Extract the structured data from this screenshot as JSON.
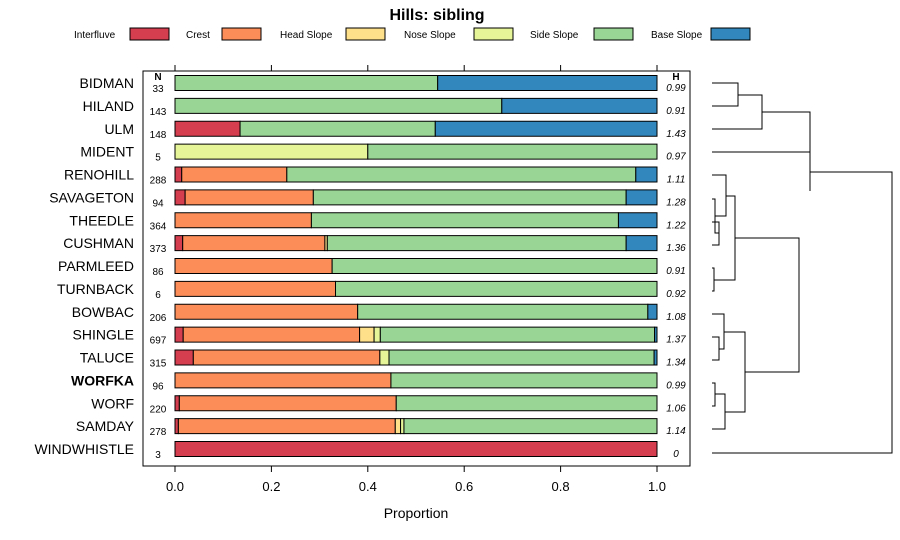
{
  "chart_data": {
    "type": "stacked-bar",
    "title": "Hills: sibling",
    "xlabel": "Proportion",
    "xlim": [
      0,
      1
    ],
    "xticks": [
      "0.0",
      "0.2",
      "0.4",
      "0.6",
      "0.8",
      "1.0"
    ],
    "n_header": "N",
    "h_header": "H",
    "legend": [
      {
        "name": "Interfluve",
        "color": "#D53E4F"
      },
      {
        "name": "Crest",
        "color": "#FC8D59"
      },
      {
        "name": "Head Slope",
        "color": "#FEE08B"
      },
      {
        "name": "Nose Slope",
        "color": "#E6F598"
      },
      {
        "name": "Side Slope",
        "color": "#99D594"
      },
      {
        "name": "Base Slope",
        "color": "#3288BD"
      }
    ],
    "rows": [
      {
        "name": "BIDMAN",
        "n": "33",
        "h": "0.99",
        "bold": false,
        "values": [
          0,
          0,
          0,
          0,
          0.545,
          0.455
        ]
      },
      {
        "name": "HILAND",
        "n": "143",
        "h": "0.91",
        "bold": false,
        "values": [
          0,
          0,
          0,
          0,
          0.678,
          0.322
        ]
      },
      {
        "name": "ULM",
        "n": "148",
        "h": "1.43",
        "bold": false,
        "values": [
          0.135,
          0,
          0,
          0,
          0.405,
          0.46
        ]
      },
      {
        "name": "MIDENT",
        "n": "5",
        "h": "0.97",
        "bold": false,
        "values": [
          0,
          0,
          0,
          0.4,
          0.6,
          0
        ]
      },
      {
        "name": "RENOHILL",
        "n": "288",
        "h": "1.11",
        "bold": false,
        "values": [
          0.014,
          0.218,
          0,
          0,
          0.724,
          0.044
        ]
      },
      {
        "name": "SAVAGETON",
        "n": "94",
        "h": "1.28",
        "bold": false,
        "values": [
          0.021,
          0.266,
          0,
          0,
          0.649,
          0.064
        ]
      },
      {
        "name": "THEEDLE",
        "n": "364",
        "h": "1.22",
        "bold": false,
        "values": [
          0,
          0.283,
          0,
          0,
          0.637,
          0.08
        ]
      },
      {
        "name": "CUSHMAN",
        "n": "373",
        "h": "1.36",
        "bold": false,
        "values": [
          0.016,
          0.295,
          0.005,
          0,
          0.62,
          0.064
        ]
      },
      {
        "name": "PARMLEED",
        "n": "86",
        "h": "0.91",
        "bold": false,
        "values": [
          0,
          0.326,
          0,
          0,
          0.674,
          0
        ]
      },
      {
        "name": "TURNBACK",
        "n": "6",
        "h": "0.92",
        "bold": false,
        "values": [
          0,
          0.333,
          0,
          0,
          0.667,
          0
        ]
      },
      {
        "name": "BOWBAC",
        "n": "206",
        "h": "1.08",
        "bold": false,
        "values": [
          0,
          0.379,
          0,
          0,
          0.602,
          0.019
        ]
      },
      {
        "name": "SHINGLE",
        "n": "697",
        "h": "1.37",
        "bold": false,
        "values": [
          0.017,
          0.366,
          0.03,
          0.013,
          0.569,
          0.005
        ]
      },
      {
        "name": "TALUCE",
        "n": "315",
        "h": "1.34",
        "bold": false,
        "values": [
          0.038,
          0.387,
          0,
          0.019,
          0.55,
          0.006
        ]
      },
      {
        "name": "WORFKA",
        "n": "96",
        "h": "0.99",
        "bold": true,
        "values": [
          0,
          0.448,
          0,
          0,
          0.552,
          0
        ]
      },
      {
        "name": "WORF",
        "n": "220",
        "h": "1.06",
        "bold": false,
        "values": [
          0.009,
          0.45,
          0,
          0,
          0.541,
          0
        ]
      },
      {
        "name": "SAMDAY",
        "n": "278",
        "h": "1.14",
        "bold": false,
        "values": [
          0.007,
          0.45,
          0.011,
          0.007,
          0.525,
          0
        ]
      },
      {
        "name": "WINDWHISTLE",
        "n": "3",
        "h": "0",
        "bold": false,
        "values": [
          1,
          0,
          0,
          0,
          0,
          0
        ]
      }
    ]
  }
}
